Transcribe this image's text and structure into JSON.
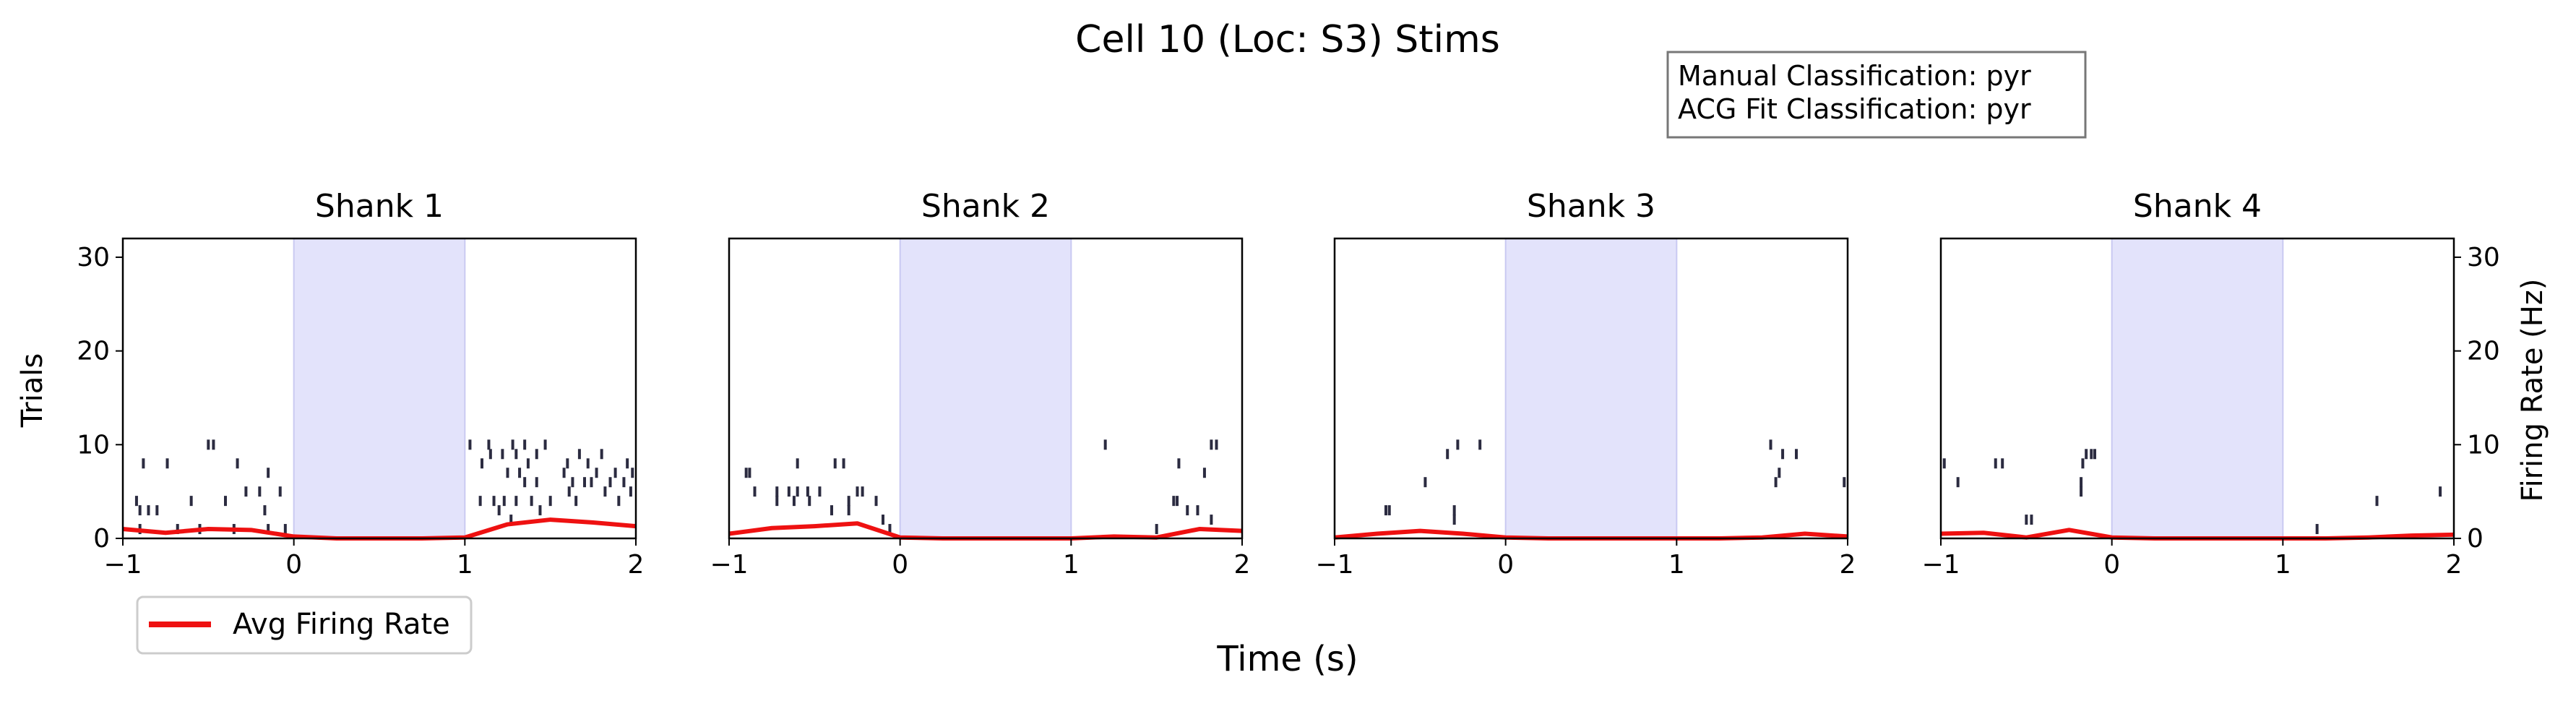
{
  "figure": {
    "title": "Cell 10 (Loc: S3) Stims",
    "classification_lines": [
      "Manual Classification: pyr",
      "ACG Fit Classification: pyr"
    ],
    "shared_xlabel": "Time (s)",
    "left_ylabel": "Trials",
    "right_ylabel": "Firing Rate (Hz)",
    "legend_label": "Avg Firing Rate"
  },
  "colors": {
    "raster": "#2b2b40",
    "rate_line": "#ee1111",
    "stim_shade": "#e3e3fb",
    "stim_edge": "#c9c9f2",
    "legend_edge": "#cccccc",
    "box_edge": "#777777"
  },
  "chart_data": [
    {
      "type": "scatter",
      "title": "Shank 1",
      "xlim": [
        -1,
        2
      ],
      "ylim": [
        0,
        32
      ],
      "xticks": [
        -1,
        0,
        1,
        2
      ],
      "yticks": [
        0,
        10,
        20,
        30
      ],
      "stim_window": [
        0,
        1
      ],
      "firing_rate": {
        "x": [
          -1,
          -0.75,
          -0.5,
          -0.25,
          0,
          0.25,
          0.5,
          0.75,
          1,
          1.25,
          1.5,
          1.75,
          2
        ],
        "y": [
          1.0,
          0.6,
          1.0,
          0.9,
          0.2,
          0,
          0,
          0,
          0.1,
          1.5,
          2.0,
          1.7,
          1.3
        ]
      },
      "spikes": [
        [
          -0.88,
          8
        ],
        [
          -0.74,
          8
        ],
        [
          -0.5,
          10
        ],
        [
          -0.47,
          10
        ],
        [
          -0.33,
          8
        ],
        [
          -0.15,
          7
        ],
        [
          -0.92,
          4
        ],
        [
          -0.6,
          4
        ],
        [
          -0.4,
          4
        ],
        [
          -0.28,
          5
        ],
        [
          -0.2,
          5
        ],
        [
          -0.08,
          5
        ],
        [
          -0.9,
          3
        ],
        [
          -0.85,
          3
        ],
        [
          -0.8,
          3
        ],
        [
          -0.17,
          3
        ],
        [
          -0.9,
          1
        ],
        [
          -0.68,
          1
        ],
        [
          -0.55,
          1
        ],
        [
          -0.35,
          1
        ],
        [
          -0.15,
          1
        ],
        [
          -0.05,
          1
        ],
        [
          1.03,
          10
        ],
        [
          1.14,
          10
        ],
        [
          1.28,
          10
        ],
        [
          1.35,
          10
        ],
        [
          1.47,
          10
        ],
        [
          1.15,
          9
        ],
        [
          1.22,
          9
        ],
        [
          1.3,
          9
        ],
        [
          1.42,
          9
        ],
        [
          1.67,
          9
        ],
        [
          1.8,
          9
        ],
        [
          1.1,
          8
        ],
        [
          1.37,
          8
        ],
        [
          1.6,
          8
        ],
        [
          1.72,
          8
        ],
        [
          1.95,
          8
        ],
        [
          1.25,
          7
        ],
        [
          1.32,
          7
        ],
        [
          1.58,
          7
        ],
        [
          1.77,
          7
        ],
        [
          1.88,
          7
        ],
        [
          1.98,
          7
        ],
        [
          1.35,
          6
        ],
        [
          1.42,
          6
        ],
        [
          1.63,
          6
        ],
        [
          1.7,
          6
        ],
        [
          1.74,
          6
        ],
        [
          1.85,
          6
        ],
        [
          1.93,
          6
        ],
        [
          1.09,
          4
        ],
        [
          1.17,
          4
        ],
        [
          1.23,
          4
        ],
        [
          1.3,
          4
        ],
        [
          1.39,
          4
        ],
        [
          1.5,
          4
        ],
        [
          1.65,
          4
        ],
        [
          1.9,
          4
        ],
        [
          1.2,
          3
        ],
        [
          1.44,
          3
        ],
        [
          1.61,
          5
        ],
        [
          1.82,
          5
        ],
        [
          1.97,
          5
        ],
        [
          1.27,
          2
        ]
      ]
    },
    {
      "type": "scatter",
      "title": "Shank 2",
      "xlim": [
        -1,
        2
      ],
      "ylim": [
        0,
        32
      ],
      "xticks": [
        -1,
        0,
        1,
        2
      ],
      "yticks": [],
      "stim_window": [
        0,
        1
      ],
      "firing_rate": {
        "x": [
          -1,
          -0.75,
          -0.5,
          -0.25,
          0,
          0.25,
          0.5,
          0.75,
          1,
          1.25,
          1.5,
          1.75,
          2
        ],
        "y": [
          0.5,
          1.1,
          1.3,
          1.6,
          0.1,
          0,
          0,
          0,
          0,
          0.2,
          0.1,
          1.0,
          0.8
        ]
      },
      "spikes": [
        [
          -0.9,
          7
        ],
        [
          -0.88,
          7
        ],
        [
          -0.6,
          8
        ],
        [
          -0.38,
          8
        ],
        [
          -0.33,
          8
        ],
        [
          -0.85,
          5
        ],
        [
          -0.72,
          5
        ],
        [
          -0.65,
          5
        ],
        [
          -0.6,
          5
        ],
        [
          -0.54,
          5
        ],
        [
          -0.47,
          5
        ],
        [
          -0.25,
          5
        ],
        [
          -0.22,
          5
        ],
        [
          -0.72,
          4
        ],
        [
          -0.62,
          4
        ],
        [
          -0.53,
          4
        ],
        [
          -0.3,
          4
        ],
        [
          -0.14,
          4
        ],
        [
          -0.1,
          2
        ],
        [
          -0.06,
          1
        ],
        [
          -0.4,
          3
        ],
        [
          -0.3,
          3
        ],
        [
          1.2,
          10
        ],
        [
          1.63,
          8
        ],
        [
          1.82,
          10
        ],
        [
          1.85,
          10
        ],
        [
          1.78,
          7
        ],
        [
          1.6,
          4
        ],
        [
          1.62,
          4
        ],
        [
          1.68,
          3
        ],
        [
          1.74,
          3
        ],
        [
          1.82,
          2
        ],
        [
          1.5,
          1
        ]
      ]
    },
    {
      "type": "scatter",
      "title": "Shank 3",
      "xlim": [
        -1,
        2
      ],
      "ylim": [
        0,
        32
      ],
      "xticks": [
        -1,
        0,
        1,
        2
      ],
      "yticks": [],
      "stim_window": [
        0,
        1
      ],
      "firing_rate": {
        "x": [
          -1,
          -0.75,
          -0.5,
          -0.25,
          0,
          0.25,
          0.5,
          0.75,
          1,
          1.25,
          1.5,
          1.75,
          2
        ],
        "y": [
          0.1,
          0.5,
          0.8,
          0.5,
          0.1,
          0,
          0,
          0,
          0,
          0,
          0.1,
          0.5,
          0.2
        ]
      },
      "spikes": [
        [
          -0.28,
          10
        ],
        [
          -0.15,
          10
        ],
        [
          -0.34,
          9
        ],
        [
          -0.47,
          6
        ],
        [
          -0.3,
          3
        ],
        [
          -0.3,
          2
        ],
        [
          -0.7,
          3
        ],
        [
          -0.68,
          3
        ],
        [
          1.55,
          10
        ],
        [
          1.62,
          9
        ],
        [
          1.7,
          9
        ],
        [
          1.6,
          7
        ],
        [
          1.58,
          6
        ],
        [
          1.98,
          6
        ]
      ]
    },
    {
      "type": "scatter",
      "title": "Shank 4",
      "xlim": [
        -1,
        2
      ],
      "ylim": [
        0,
        32
      ],
      "xticks": [
        -1,
        0,
        1,
        2
      ],
      "yticks": [
        0,
        10,
        20,
        30
      ],
      "stim_window": [
        0,
        1
      ],
      "firing_rate": {
        "x": [
          -1,
          -0.75,
          -0.5,
          -0.25,
          0,
          0.25,
          0.5,
          0.75,
          1,
          1.25,
          1.5,
          1.75,
          2
        ],
        "y": [
          0.5,
          0.6,
          0.1,
          0.9,
          0.1,
          0,
          0,
          0,
          0,
          0,
          0.1,
          0.3,
          0.4
        ]
      },
      "spikes": [
        [
          -0.98,
          8
        ],
        [
          -0.68,
          8
        ],
        [
          -0.64,
          8
        ],
        [
          -0.9,
          6
        ],
        [
          -0.1,
          9
        ],
        [
          -0.15,
          9
        ],
        [
          -0.12,
          9
        ],
        [
          -0.17,
          8
        ],
        [
          -0.18,
          6
        ],
        [
          -0.18,
          5
        ],
        [
          -0.47,
          2
        ],
        [
          -0.5,
          2
        ],
        [
          1.2,
          1
        ],
        [
          1.55,
          4
        ],
        [
          1.92,
          5
        ]
      ]
    }
  ]
}
